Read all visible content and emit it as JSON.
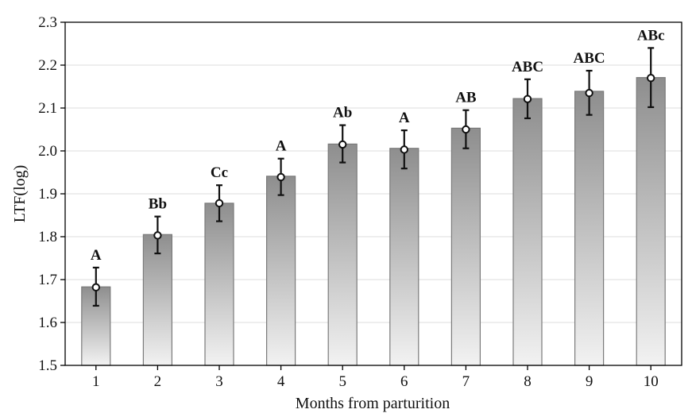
{
  "chart_data": {
    "type": "bar",
    "xlabel": "Months from parturition",
    "ylabel": "LTF(log)",
    "ylim": [
      1.5,
      2.3
    ],
    "yticks": [
      "1.5",
      "1.6",
      "1.7",
      "1.8",
      "1.9",
      "2.0",
      "2.1",
      "2.2",
      "2.3"
    ],
    "categories": [
      "1",
      "2",
      "3",
      "4",
      "5",
      "6",
      "7",
      "8",
      "9",
      "10"
    ],
    "values": [
      1.683,
      1.805,
      1.878,
      1.941,
      2.016,
      2.006,
      2.053,
      2.122,
      2.139,
      2.171
    ],
    "means": [
      1.682,
      1.803,
      1.878,
      1.939,
      2.015,
      2.003,
      2.05,
      2.121,
      2.135,
      2.17
    ],
    "err_low": [
      1.639,
      1.761,
      1.836,
      1.897,
      1.973,
      1.959,
      2.006,
      2.076,
      2.084,
      2.102
    ],
    "err_high": [
      1.728,
      1.847,
      1.92,
      1.982,
      2.06,
      2.048,
      2.095,
      2.167,
      2.187,
      2.24
    ],
    "group_labels": [
      "A",
      "Bb",
      "Cc",
      "A",
      "Ab",
      "A",
      "AB",
      "ABC",
      "ABC",
      "ABc"
    ],
    "grid": true,
    "bar_gradient": [
      "#f2f2f2",
      "#8e8e8e"
    ]
  }
}
